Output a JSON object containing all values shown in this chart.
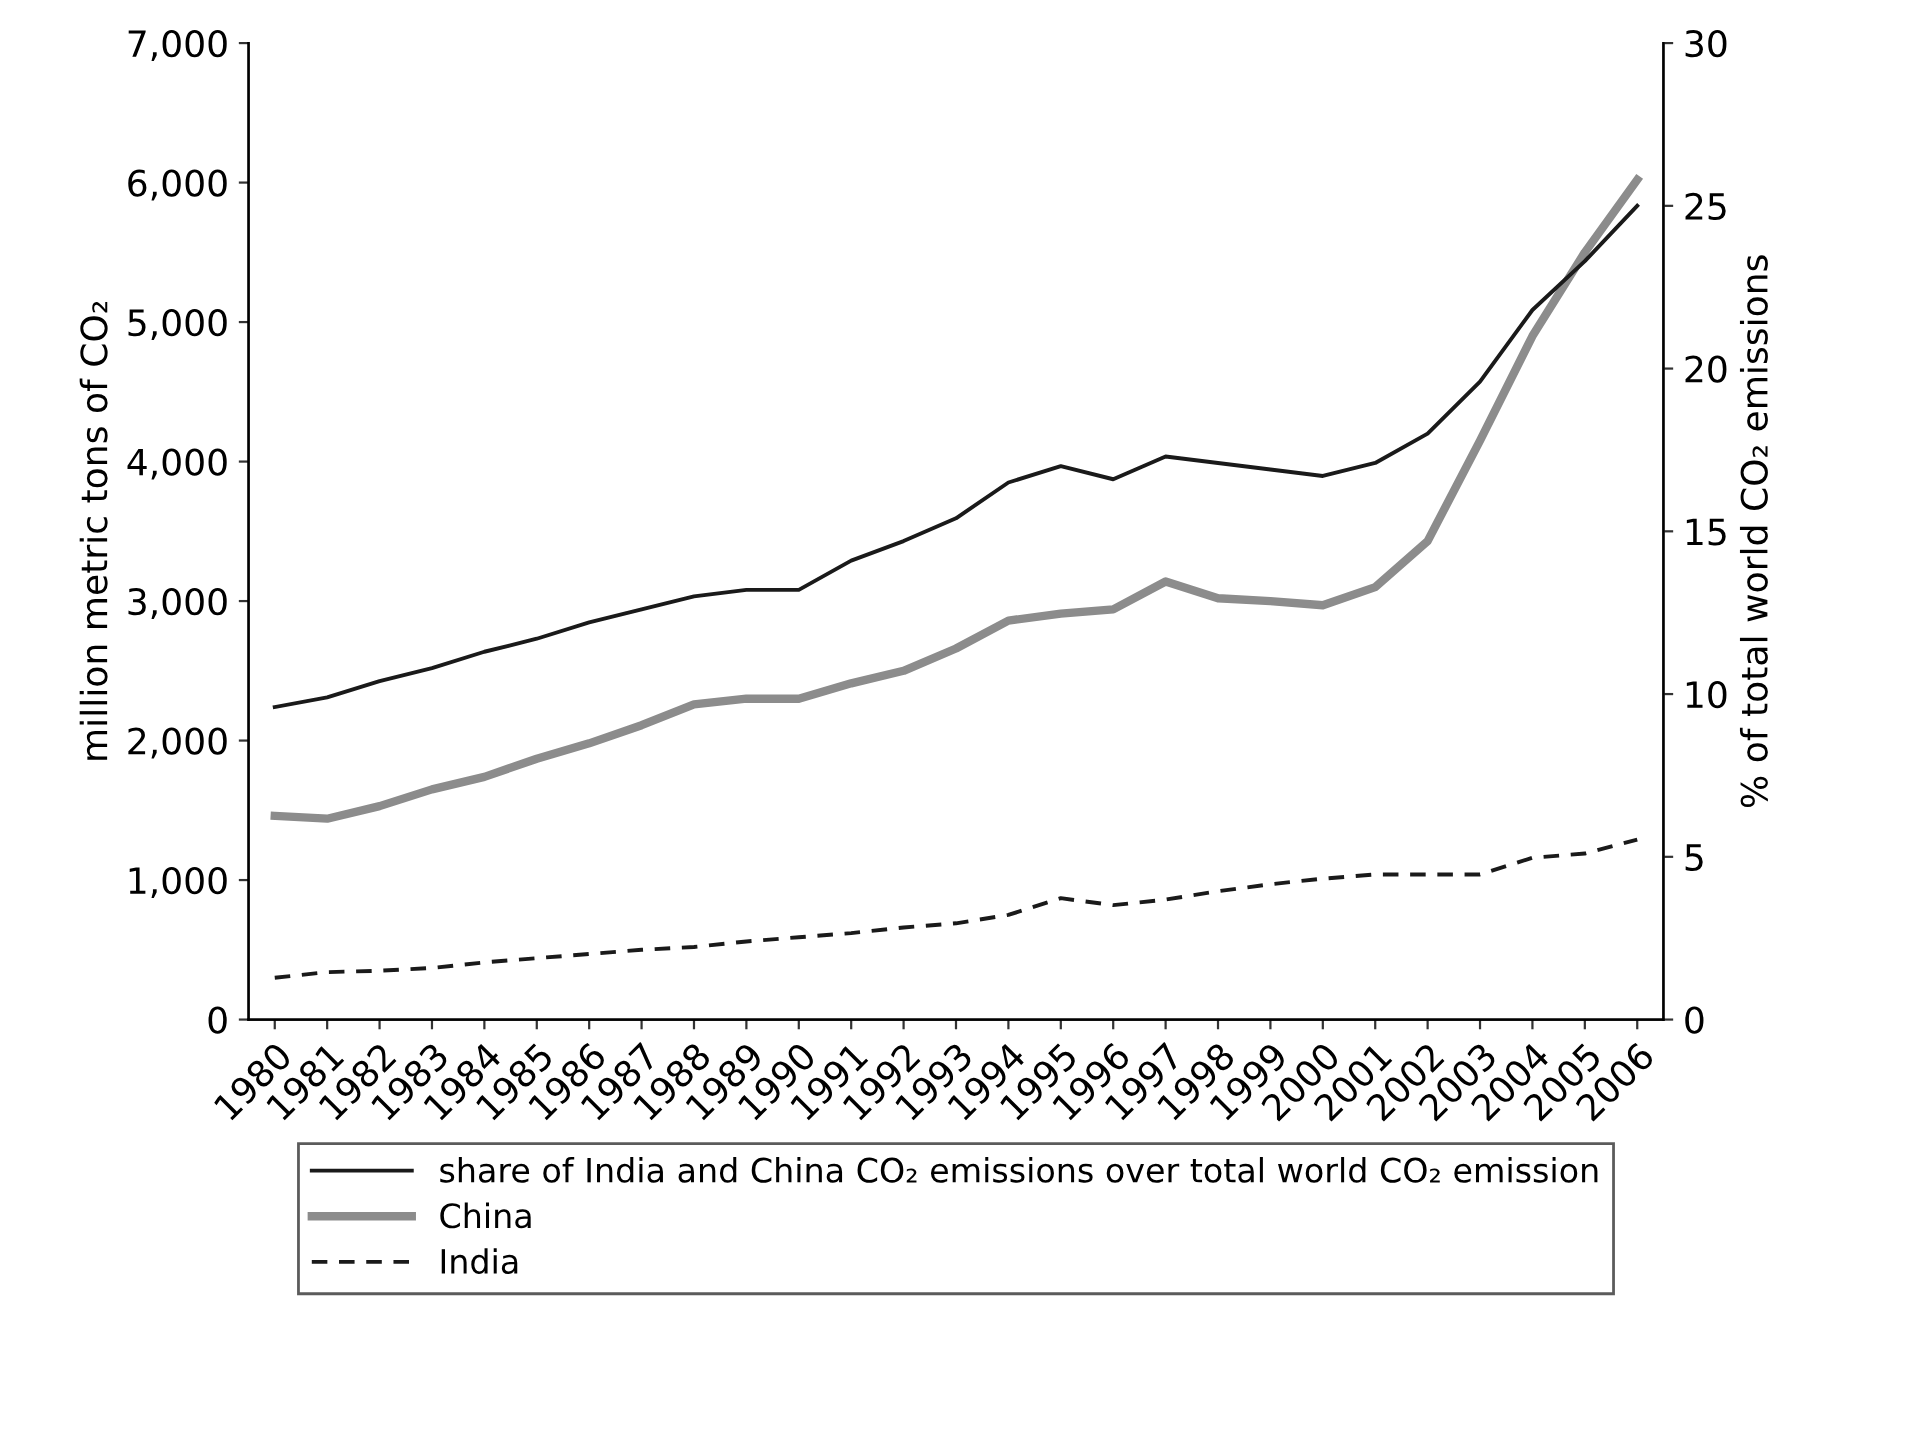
{
  "chart_data": {
    "type": "line",
    "categories": [
      "1980",
      "1981",
      "1982",
      "1983",
      "1984",
      "1985",
      "1986",
      "1987",
      "1988",
      "1989",
      "1990",
      "1991",
      "1992",
      "1993",
      "1994",
      "1995",
      "1996",
      "1997",
      "1998",
      "1999",
      "2000",
      "2001",
      "2002",
      "2003",
      "2004",
      "2005",
      "2006"
    ],
    "ylabel": "million metric tons of CO₂",
    "y2label": "% of total world CO₂ emissions",
    "series": [
      {
        "name": "share of India and China CO₂ emissions over total world CO₂ emission",
        "color": "#1a1a1a",
        "axis": "y2",
        "line_style": "solid",
        "values": [
          9.6,
          9.9,
          10.4,
          10.8,
          11.3,
          11.7,
          12.2,
          12.6,
          13.0,
          13.2,
          13.2,
          14.1,
          14.7,
          15.4,
          16.5,
          17.0,
          16.6,
          17.3,
          17.1,
          16.9,
          16.7,
          17.1,
          18.0,
          19.6,
          21.8,
          23.3,
          25.0
        ]
      },
      {
        "name": "China",
        "color": "#8c8c8c",
        "axis": "y",
        "line_style": "solid",
        "values": [
          1460,
          1440,
          1530,
          1650,
          1740,
          1870,
          1980,
          2110,
          2260,
          2300,
          2300,
          2410,
          2500,
          2660,
          2860,
          2910,
          2940,
          3140,
          3020,
          3000,
          2970,
          3100,
          3430,
          4150,
          4900,
          5500,
          6020
        ]
      },
      {
        "name": "India",
        "color": "#1a1a1a",
        "axis": "y",
        "line_style": "dashed",
        "values": [
          300,
          340,
          350,
          370,
          410,
          440,
          470,
          500,
          520,
          560,
          590,
          620,
          660,
          690,
          750,
          870,
          820,
          860,
          920,
          970,
          1010,
          1040,
          1040,
          1040,
          1160,
          1190,
          1290
        ]
      }
    ],
    "ylim": [
      0,
      7000
    ],
    "yticks": [
      0,
      {
        "value": 1000,
        "label": "1,000"
      },
      {
        "value": 2000,
        "label": "2,000"
      },
      {
        "value": 3000,
        "label": "3,000"
      },
      {
        "value": 4000,
        "label": "4,000"
      },
      {
        "value": 5000,
        "label": "5,000"
      },
      {
        "value": 6000,
        "label": "6,000"
      },
      {
        "value": 7000,
        "label": "7,000"
      }
    ],
    "y2lim": [
      0,
      30
    ],
    "y2ticks": [
      0,
      5,
      10,
      15,
      20,
      25,
      30
    ],
    "grid": false,
    "legend": "bottom",
    "marker": "none"
  }
}
